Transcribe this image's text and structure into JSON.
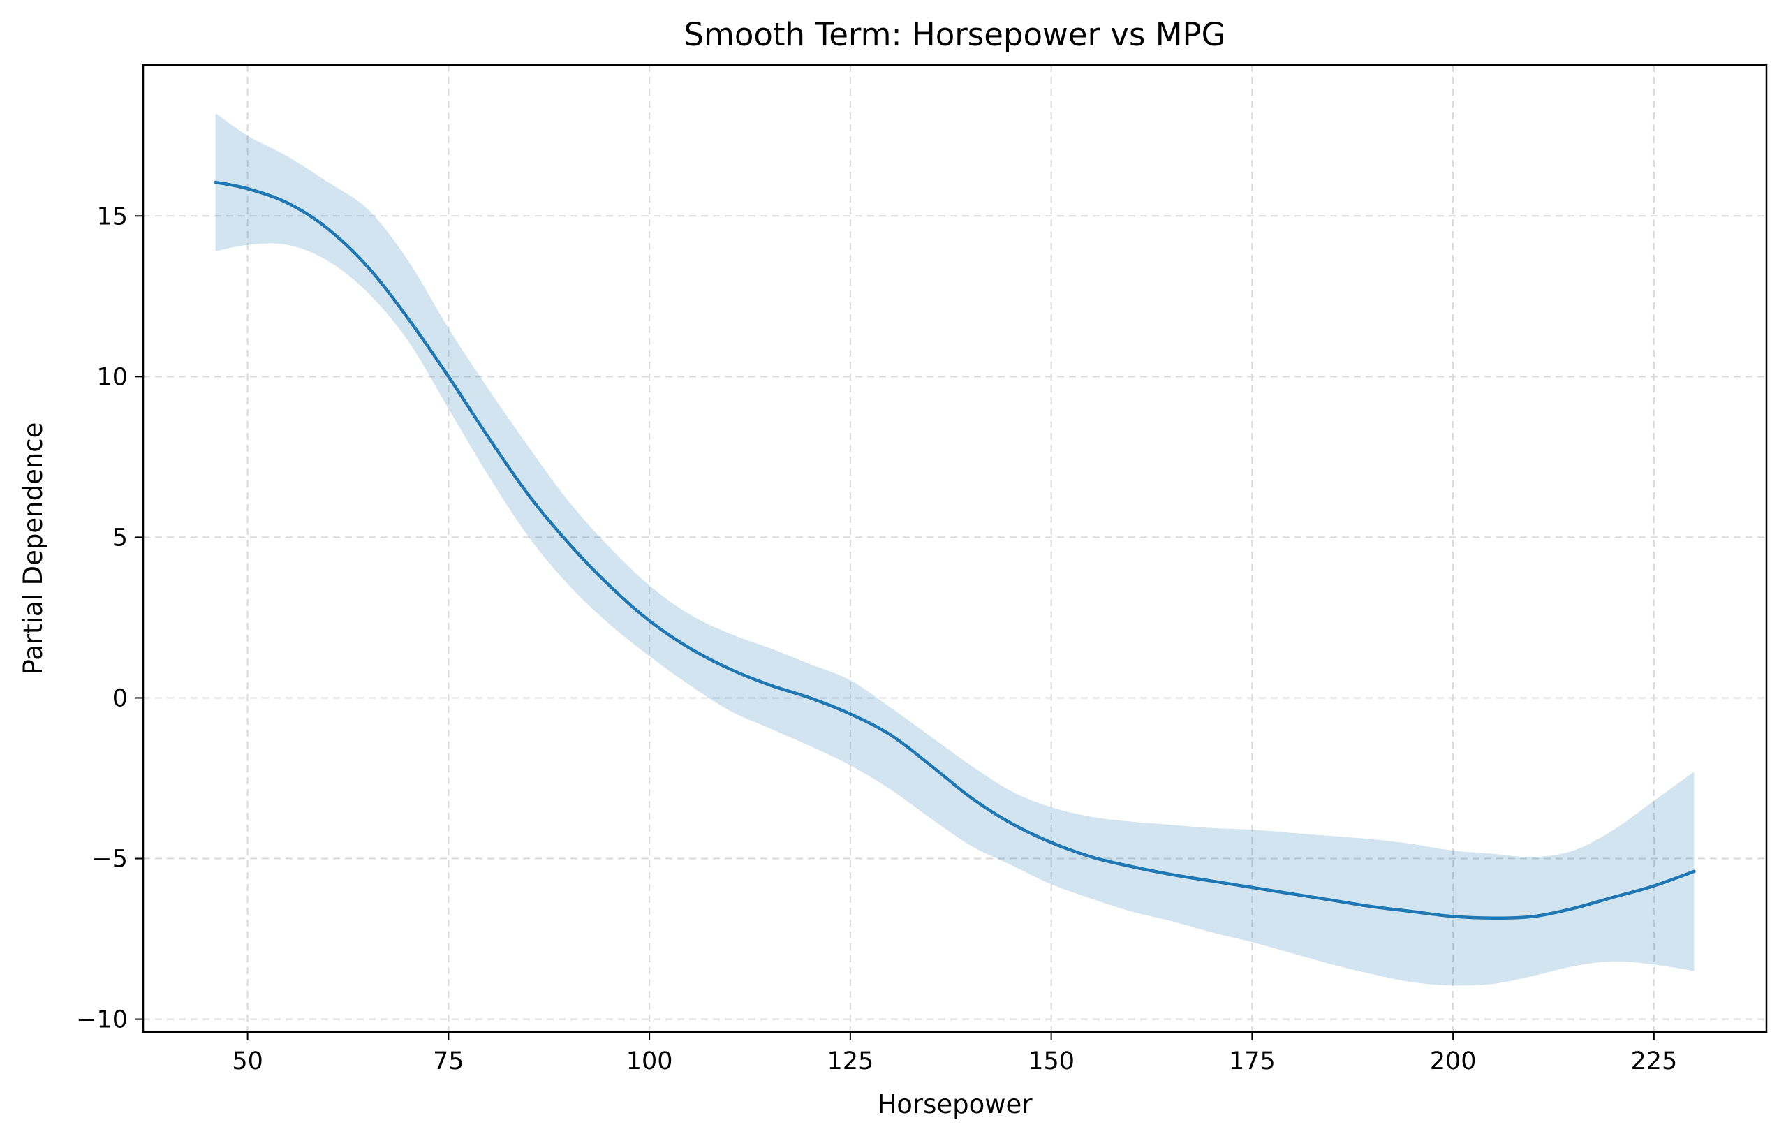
{
  "chart_data": {
    "type": "line",
    "title": "Smooth Term: Horsepower vs MPG",
    "xlabel": "Horsepower",
    "ylabel": "Partial Dependence",
    "xlim": [
      37,
      239
    ],
    "ylim": [
      -10.4,
      19.7
    ],
    "grid": true,
    "xticks": [
      50,
      75,
      100,
      125,
      150,
      175,
      200,
      225
    ],
    "yticks": [
      -10,
      -5,
      0,
      5,
      10,
      15
    ],
    "xtick_labels": [
      "50",
      "75",
      "100",
      "125",
      "150",
      "175",
      "200",
      "225"
    ],
    "ytick_labels": [
      "−10",
      "−5",
      "0",
      "5",
      "10",
      "15"
    ],
    "colors": {
      "line": "#1f77b4",
      "band": "#1f77b4"
    },
    "series": [
      {
        "x": [
          46,
          50,
          55,
          60,
          65,
          70,
          75,
          80,
          85,
          90,
          95,
          100,
          105,
          110,
          115,
          120,
          125,
          130,
          135,
          140,
          145,
          150,
          155,
          160,
          165,
          170,
          175,
          180,
          185,
          190,
          195,
          200,
          205,
          210,
          215,
          220,
          225,
          230
        ],
        "y": [
          16.05,
          15.85,
          15.4,
          14.6,
          13.4,
          11.8,
          10.0,
          8.1,
          6.3,
          4.8,
          3.5,
          2.4,
          1.55,
          0.9,
          0.4,
          0.0,
          -0.5,
          -1.15,
          -2.1,
          -3.1,
          -3.9,
          -4.5,
          -4.95,
          -5.25,
          -5.5,
          -5.7,
          -5.9,
          -6.1,
          -6.3,
          -6.5,
          -6.65,
          -6.8,
          -6.85,
          -6.8,
          -6.55,
          -6.2,
          -5.85,
          -5.4
        ],
        "lower": [
          13.9,
          14.1,
          14.1,
          13.6,
          12.6,
          11.1,
          9.0,
          6.9,
          5.0,
          3.5,
          2.3,
          1.3,
          0.4,
          -0.4,
          -0.95,
          -1.5,
          -2.1,
          -2.85,
          -3.75,
          -4.6,
          -5.2,
          -5.8,
          -6.25,
          -6.65,
          -6.95,
          -7.3,
          -7.6,
          -7.95,
          -8.3,
          -8.6,
          -8.85,
          -8.95,
          -8.9,
          -8.65,
          -8.35,
          -8.2,
          -8.3,
          -8.5
        ],
        "upper": [
          18.2,
          17.5,
          16.85,
          16.05,
          15.2,
          13.6,
          11.5,
          9.6,
          7.8,
          6.1,
          4.7,
          3.5,
          2.6,
          2.0,
          1.55,
          1.05,
          0.55,
          -0.3,
          -1.2,
          -2.1,
          -2.9,
          -3.4,
          -3.7,
          -3.85,
          -3.95,
          -4.05,
          -4.1,
          -4.2,
          -4.3,
          -4.4,
          -4.55,
          -4.75,
          -4.85,
          -4.95,
          -4.75,
          -4.1,
          -3.2,
          -2.3
        ]
      }
    ]
  }
}
